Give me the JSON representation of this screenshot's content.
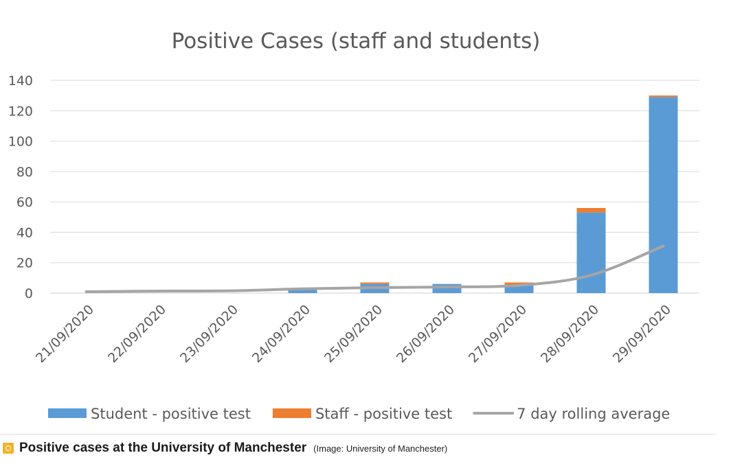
{
  "chart_data": {
    "type": "bar",
    "title": "Positive Cases (staff and students)",
    "xlabel": "",
    "ylabel": "",
    "ylim": [
      0,
      140
    ],
    "yticks": [
      0,
      20,
      40,
      60,
      80,
      100,
      120,
      140
    ],
    "stacked": true,
    "grid": true,
    "legend_position": "bottom",
    "categories": [
      "21/09/2020",
      "22/09/2020",
      "23/09/2020",
      "24/09/2020",
      "25/09/2020",
      "26/09/2020",
      "27/09/2020",
      "28/09/2020",
      "29/09/2020"
    ],
    "series": [
      {
        "name": "Student - positive test",
        "kind": "bar",
        "color": "#5b9bd5",
        "values": [
          0,
          0,
          0,
          3,
          6,
          6,
          5,
          53,
          129
        ]
      },
      {
        "name": "Staff - positive test",
        "kind": "bar",
        "color": "#ed7d31",
        "values": [
          0,
          0,
          0,
          0,
          1,
          0,
          2,
          3,
          1
        ]
      },
      {
        "name": "7 day rolling average",
        "kind": "line",
        "color": "#a5a5a5",
        "values": [
          0.9,
          1.3,
          1.5,
          2.8,
          3.6,
          4,
          5.1,
          11.8,
          31
        ]
      }
    ]
  },
  "caption": {
    "text": "Positive cases at the University of Manchester",
    "credit": "(Image: University of Manchester)"
  }
}
